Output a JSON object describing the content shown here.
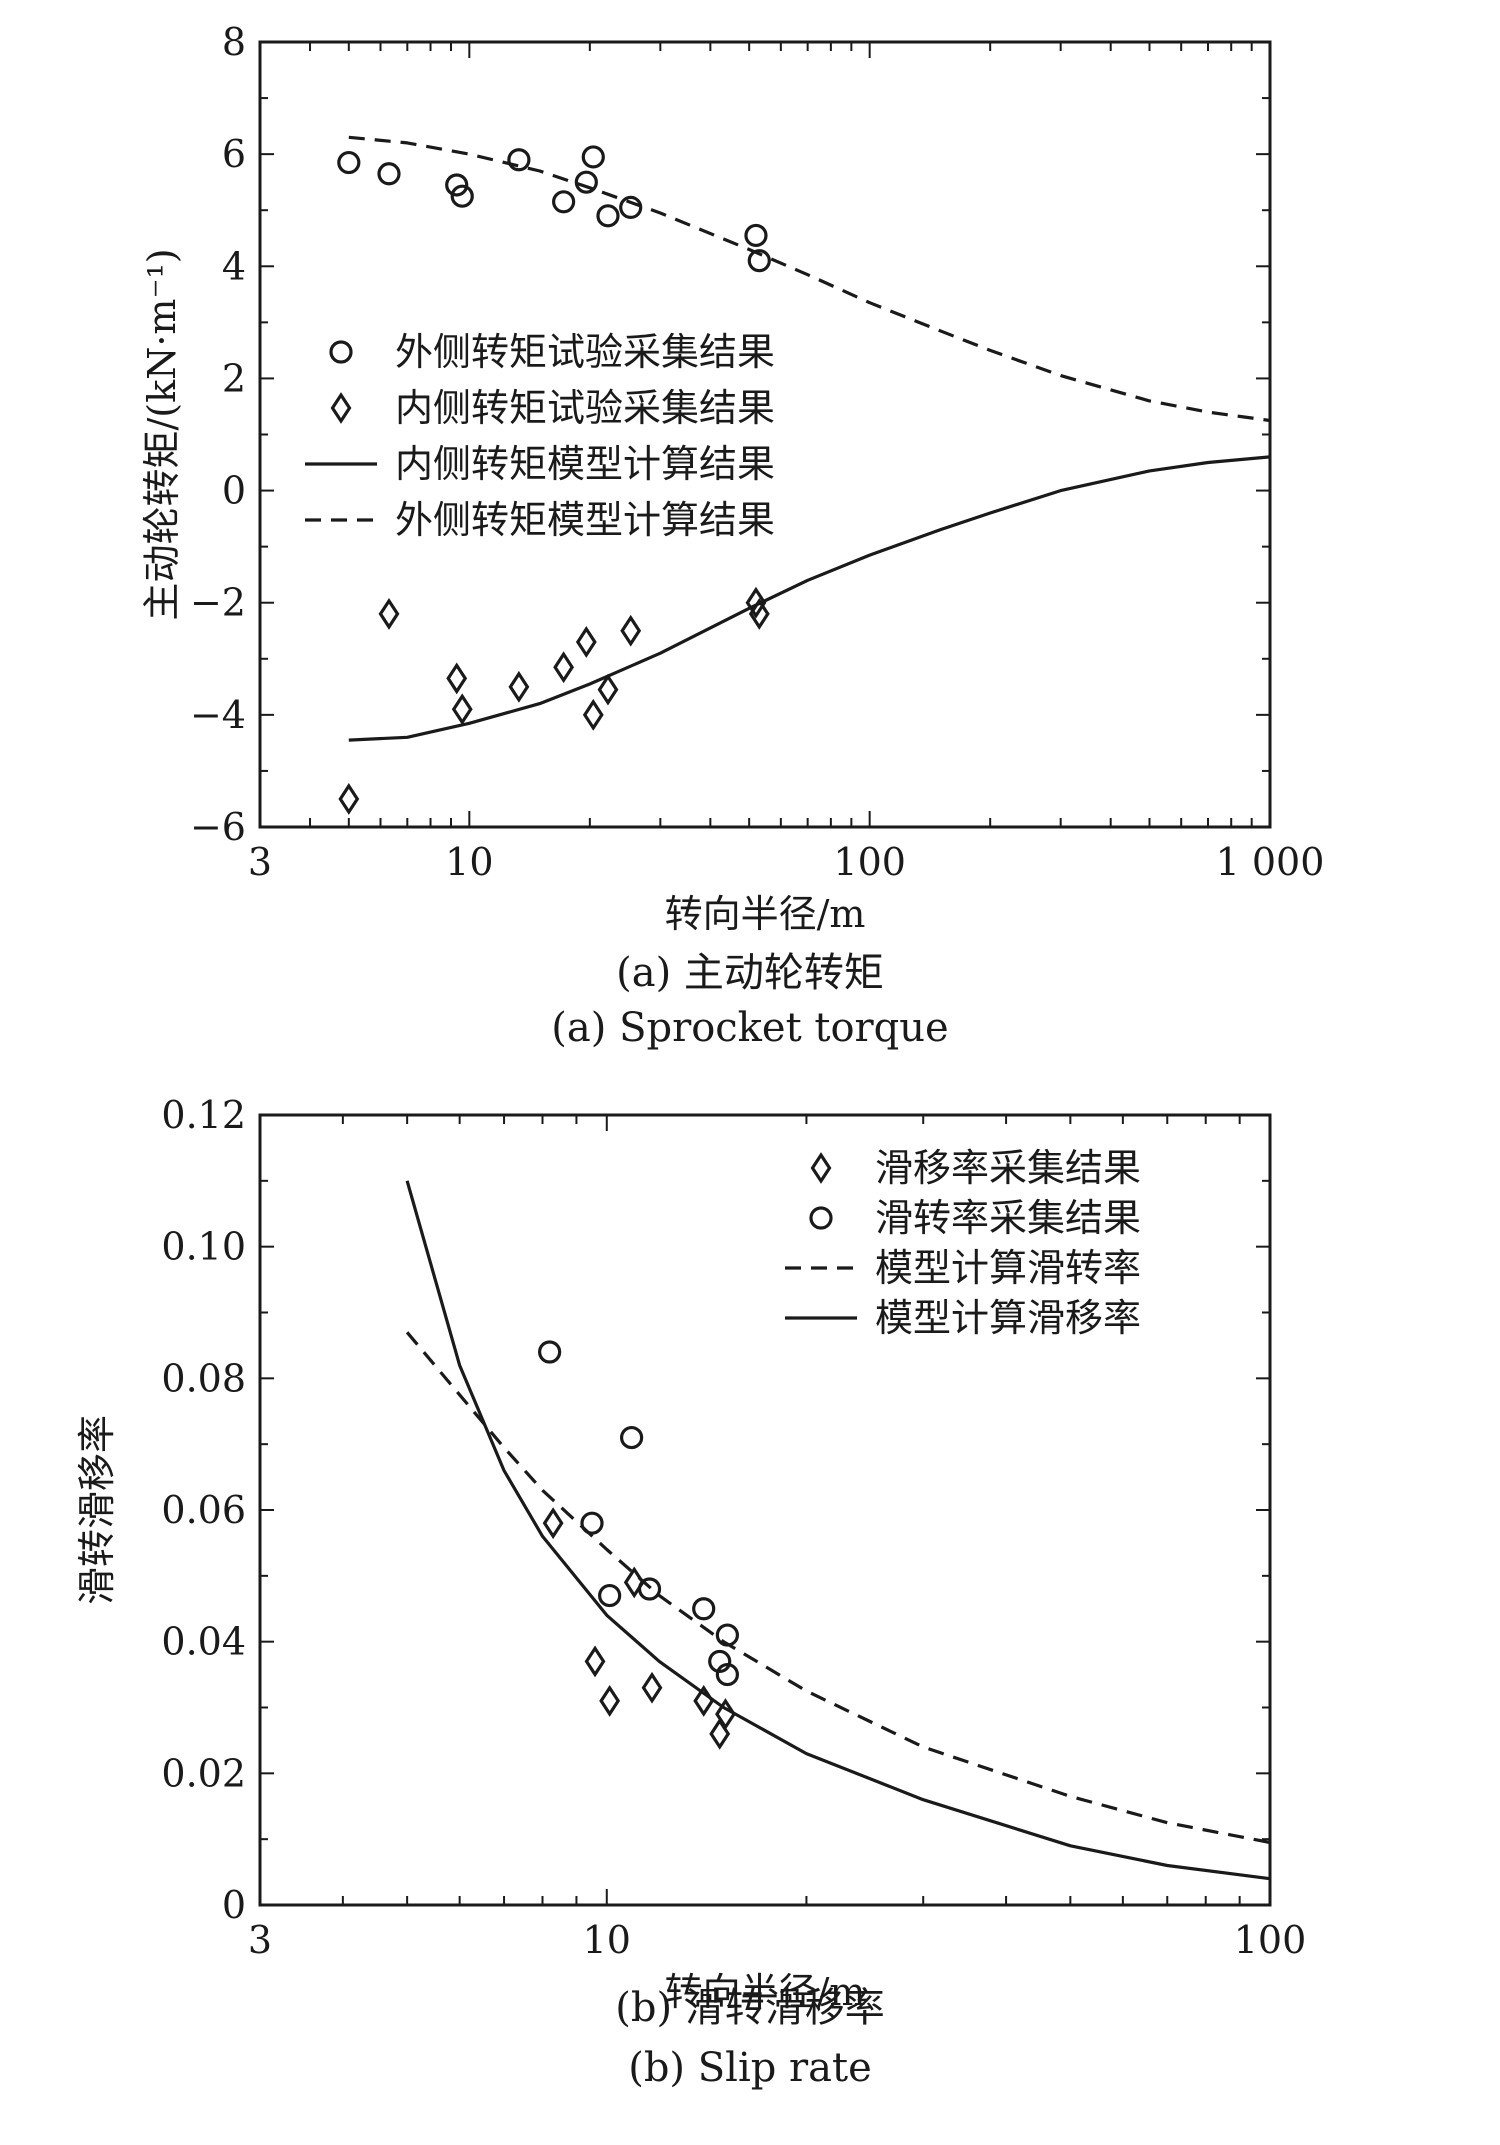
{
  "chart_data": [
    {
      "type": "scatter",
      "x_scale": "log",
      "xlim": [
        3,
        1000
      ],
      "ylim": [
        -6,
        8
      ],
      "x_ticks": [
        3,
        10,
        100,
        1000
      ],
      "x_tick_labels": [
        "3",
        "10",
        "100",
        "1 000"
      ],
      "y_ticks": [
        -6,
        -4,
        -2,
        0,
        2,
        4,
        6,
        8
      ],
      "y_tick_labels": [
        "−6",
        "−4",
        "−2",
        "0",
        "2",
        "4",
        "6",
        "8"
      ],
      "xlabel": "转向半径/m",
      "ylabel": "主动轮转矩/(kN·m⁻¹)",
      "caption_cn": "(a) 主动轮转矩",
      "caption_en": "(a) Sprocket torque",
      "legend_position": "center-left",
      "grid": false,
      "series": [
        {
          "name": "外侧转矩试验采集结果",
          "kind": "marker",
          "marker": "circle",
          "color": "#1a1a1a",
          "x": [
            5.0,
            6.3,
            9.3,
            9.6,
            13.3,
            17.2,
            19.6,
            20.4,
            22.2,
            25.3,
            52.0,
            53.0
          ],
          "y": [
            5.85,
            5.65,
            5.45,
            5.25,
            5.9,
            5.15,
            5.5,
            5.95,
            4.9,
            5.05,
            4.55,
            4.1
          ]
        },
        {
          "name": "内侧转矩试验采集结果",
          "kind": "marker",
          "marker": "diamond",
          "color": "#1a1a1a",
          "x": [
            5.0,
            6.3,
            9.3,
            9.6,
            13.3,
            17.2,
            19.6,
            20.4,
            22.2,
            25.3,
            52.0,
            53.0
          ],
          "y": [
            -5.5,
            -2.2,
            -3.35,
            -3.9,
            -3.5,
            -3.15,
            -2.7,
            -4.0,
            -3.55,
            -2.5,
            -2.0,
            -2.2
          ]
        },
        {
          "name": "内侧转矩模型计算结果",
          "kind": "line",
          "dash": "solid",
          "color": "#1a1a1a",
          "x": [
            5,
            7,
            10,
            15,
            20,
            30,
            50,
            70,
            100,
            150,
            200,
            300,
            500,
            700,
            1000
          ],
          "y": [
            -4.45,
            -4.4,
            -4.15,
            -3.8,
            -3.45,
            -2.9,
            -2.1,
            -1.6,
            -1.15,
            -0.7,
            -0.4,
            0.0,
            0.35,
            0.5,
            0.6
          ]
        },
        {
          "name": "外侧转矩模型计算结果",
          "kind": "line",
          "dash": "dashed",
          "color": "#1a1a1a",
          "x": [
            5,
            7,
            10,
            15,
            20,
            30,
            50,
            70,
            100,
            150,
            200,
            300,
            500,
            700,
            1000
          ],
          "y": [
            6.3,
            6.2,
            6.0,
            5.7,
            5.4,
            4.95,
            4.3,
            3.85,
            3.35,
            2.85,
            2.5,
            2.05,
            1.6,
            1.4,
            1.25
          ]
        }
      ]
    },
    {
      "type": "scatter",
      "x_scale": "log",
      "xlim": [
        3,
        100
      ],
      "ylim": [
        0,
        0.12
      ],
      "x_ticks": [
        3,
        10,
        100
      ],
      "x_tick_labels": [
        "3",
        "10",
        "100"
      ],
      "y_ticks": [
        0,
        0.02,
        0.04,
        0.06,
        0.08,
        0.1,
        0.12
      ],
      "y_tick_labels": [
        "0",
        "0.02",
        "0.04",
        "0.06",
        "0.08",
        "0.10",
        "0.12"
      ],
      "xlabel": "转向半径/m",
      "ylabel": "滑转滑移率",
      "caption_cn": "(b) 滑转滑移率",
      "caption_en": "(b) Slip rate",
      "legend_position": "top-right",
      "grid": false,
      "series": [
        {
          "name": "滑移率采集结果",
          "kind": "marker",
          "marker": "diamond",
          "color": "#1a1a1a",
          "x": [
            8.3,
            9.6,
            10.1,
            11.0,
            11.7,
            14.0,
            14.8,
            15.1
          ],
          "y": [
            0.058,
            0.037,
            0.031,
            0.049,
            0.033,
            0.031,
            0.026,
            0.029
          ]
        },
        {
          "name": "滑转率采集结果",
          "kind": "marker",
          "marker": "circle",
          "color": "#1a1a1a",
          "x": [
            8.2,
            9.5,
            10.1,
            10.9,
            11.6,
            14.0,
            14.8,
            15.2,
            15.2
          ],
          "y": [
            0.084,
            0.058,
            0.047,
            0.071,
            0.048,
            0.045,
            0.037,
            0.041,
            0.035
          ]
        },
        {
          "name": "模型计算滑转率",
          "kind": "line",
          "dash": "dashed",
          "color": "#1a1a1a",
          "x": [
            5,
            6,
            7,
            8,
            10,
            12,
            15,
            20,
            30,
            50,
            70,
            100
          ],
          "y": [
            0.087,
            0.0775,
            0.0695,
            0.063,
            0.054,
            0.047,
            0.04,
            0.0325,
            0.024,
            0.0165,
            0.0125,
            0.0095
          ]
        },
        {
          "name": "模型计算滑移率",
          "kind": "line",
          "dash": "solid",
          "color": "#1a1a1a",
          "x": [
            5,
            6,
            7,
            8,
            10,
            12,
            15,
            20,
            30,
            50,
            70,
            100
          ],
          "y": [
            0.11,
            0.082,
            0.066,
            0.056,
            0.044,
            0.037,
            0.03,
            0.023,
            0.016,
            0.009,
            0.006,
            0.004
          ]
        }
      ]
    }
  ]
}
